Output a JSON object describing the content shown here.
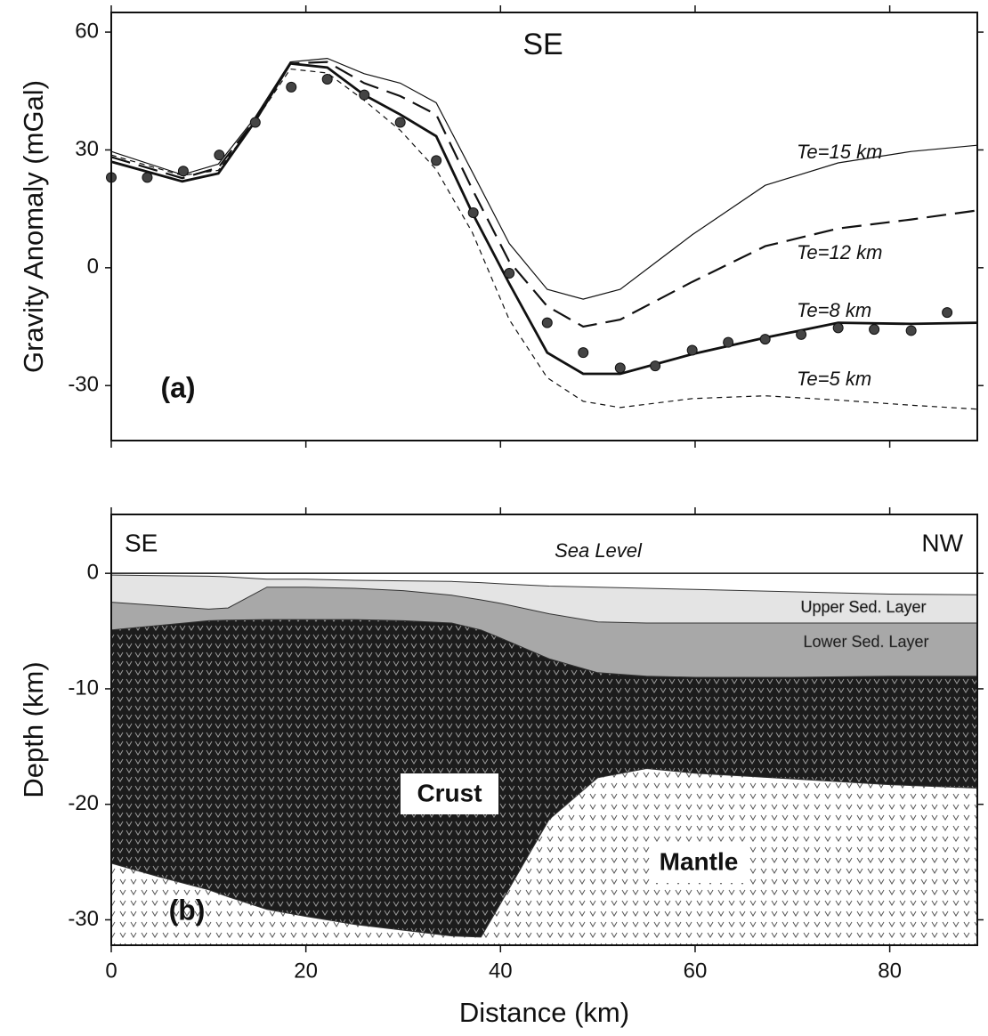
{
  "chart_data": [
    {
      "type": "line",
      "title": "SE",
      "panel_label": "(a)",
      "ylabel": "Gravity Anomaly (mGal)",
      "xlim": [
        0,
        89
      ],
      "xticks": [
        0,
        20,
        40,
        60,
        80
      ],
      "ylim": [
        -44,
        65
      ],
      "yticks": [
        60,
        30,
        0,
        -30
      ],
      "x": [
        0,
        7.3,
        11,
        14.7,
        18.4,
        22.2,
        26,
        29.7,
        33.4,
        37.1,
        40.9,
        44.8,
        48.5,
        52.3,
        59.7,
        67.2,
        74.7,
        82.2,
        89
      ],
      "series": [
        {
          "name": "Te=15 km",
          "color": "#111",
          "dash": "none",
          "width": 1.2,
          "values": [
            29.6,
            23.7,
            26.4,
            38,
            52.4,
            53.3,
            49.4,
            47,
            42,
            24.4,
            6.2,
            -5.5,
            -8,
            -5.5,
            8.4,
            21,
            26.7,
            29.6,
            31.2
          ]
        },
        {
          "name": "Te=12 km",
          "color": "#111",
          "dash": "22 10",
          "width": 2.2,
          "values": [
            28.2,
            22.8,
            25.5,
            37.4,
            52,
            52.4,
            47,
            43.7,
            39,
            20,
            1.6,
            -9.8,
            -15,
            -13.2,
            -3.6,
            5.5,
            10,
            12.3,
            14.6
          ]
        },
        {
          "name": "Te=8 km",
          "color": "#111",
          "dash": "none",
          "width": 2.8,
          "values": [
            27,
            22,
            24,
            37,
            52,
            51,
            44,
            39,
            33.5,
            14,
            -4,
            -21.6,
            -27,
            -27,
            -22,
            -17.8,
            -14,
            -14.3,
            -14
          ]
        },
        {
          "name": "Te=5 km",
          "color": "#111",
          "dash": "6 5",
          "width": 1.2,
          "values": [
            28.7,
            23.5,
            24.8,
            37,
            50.6,
            49.6,
            42.6,
            35,
            25,
            9,
            -13.2,
            -28,
            -34,
            -35.6,
            -33.3,
            -32.6,
            -33.7,
            -35,
            -36
          ]
        }
      ],
      "observed": {
        "color": "#444",
        "x": [
          0,
          3.7,
          7.4,
          11.1,
          14.8,
          18.5,
          22.2,
          26,
          29.7,
          33.4,
          37.2,
          40.9,
          44.8,
          48.5,
          52.3,
          55.9,
          59.7,
          63.4,
          67.2,
          70.9,
          74.7,
          78.4,
          82.2,
          85.9
        ],
        "values": [
          23,
          23,
          24.6,
          28.7,
          37,
          46,
          48,
          44,
          37,
          27.3,
          14,
          -1.4,
          -14,
          -21.6,
          -25.5,
          -25,
          -21,
          -19,
          -18.2,
          -17,
          -15.3,
          -15.7,
          -16,
          -11.4
        ]
      }
    },
    {
      "type": "area",
      "panel_label": "(b)",
      "xlabel": "Distance (km)",
      "ylabel": "Depth (km)",
      "left_label": "SE",
      "right_label": "NW",
      "sea_level": {
        "text": "Sea Level",
        "value": 0
      },
      "xlim": [
        0,
        89
      ],
      "xticks": [
        0,
        20,
        40,
        60,
        80
      ],
      "ylim": [
        -32.2,
        5.1
      ],
      "yticks": [
        0,
        -10,
        -20,
        -30
      ],
      "x": [
        0,
        5,
        10,
        12,
        16,
        20,
        25,
        30,
        35,
        38,
        40,
        45,
        50,
        55,
        60,
        70,
        80,
        89
      ],
      "series": [
        {
          "name": "Upper Sed. Layer",
          "color": "#e4e4e4",
          "pattern": false,
          "values": [
            -0.15,
            -0.2,
            -0.25,
            -0.3,
            -0.5,
            -0.5,
            -0.6,
            -0.65,
            -0.7,
            -0.8,
            -0.9,
            -1.1,
            -1.2,
            -1.3,
            -1.4,
            -1.6,
            -1.8,
            -1.85
          ]
        },
        {
          "name": "Lower Sed. Layer",
          "color": "#a8a8a8",
          "pattern": false,
          "values": [
            -2.5,
            -2.8,
            -3.1,
            -3.0,
            -1.2,
            -1.2,
            -1.3,
            -1.5,
            -1.9,
            -2.3,
            -2.6,
            -3.5,
            -4.2,
            -4.3,
            -4.3,
            -4.3,
            -4.3,
            -4.3
          ]
        },
        {
          "name": "Crust",
          "color": "#1c1c1c",
          "pattern": true,
          "values": [
            -4.9,
            -4.5,
            -4.1,
            -4.05,
            -4,
            -4,
            -4,
            -4.1,
            -4.3,
            -4.9,
            -5.6,
            -7.4,
            -8.6,
            -8.9,
            -9,
            -9,
            -8.9,
            -8.9
          ]
        },
        {
          "name": "Mantle",
          "color": "#ffffff",
          "pattern": true,
          "values": [
            -25.1,
            -26.3,
            -27.4,
            -28,
            -29.1,
            -29.7,
            -30.4,
            -30.9,
            -31.4,
            -31.5,
            -28.6,
            -21.3,
            -17.7,
            -16.9,
            -17.3,
            -17.8,
            -18.3,
            -18.6
          ]
        }
      ]
    }
  ]
}
